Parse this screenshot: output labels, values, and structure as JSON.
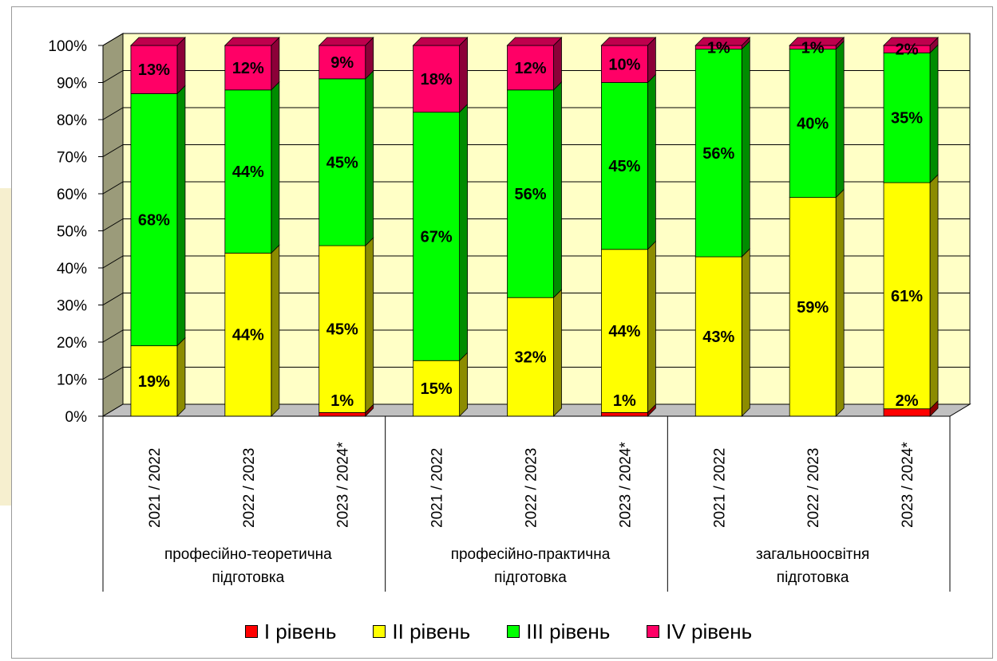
{
  "chart_data": {
    "type": "bar",
    "stacked": true,
    "percent_stacked": true,
    "three_d": true,
    "yticks": [
      "0%",
      "10%",
      "20%",
      "30%",
      "40%",
      "50%",
      "60%",
      "70%",
      "80%",
      "90%",
      "100%"
    ],
    "ylim": [
      0,
      100
    ],
    "categories": [
      "2021 / 2022",
      "2022 / 2023",
      "2023 / 2024*",
      "2021 / 2022",
      "2022 / 2023",
      "2023 / 2024*",
      "2021 / 2022",
      "2022 / 2023",
      "2023 / 2024*"
    ],
    "groups": [
      {
        "label_lines": [
          "професійно-теоретична",
          "підготовка"
        ],
        "span": 3
      },
      {
        "label_lines": [
          "професійно-практична",
          "підготовка"
        ],
        "span": 3
      },
      {
        "label_lines": [
          "загальноосвітня",
          "підготовка"
        ],
        "span": 3
      }
    ],
    "series": [
      {
        "name": "I рівень",
        "color": "#ff0000",
        "values": [
          0,
          0,
          1,
          0,
          0,
          1,
          0,
          0,
          2
        ],
        "labels": [
          "",
          "",
          "",
          "",
          "",
          "",
          "",
          "",
          ""
        ]
      },
      {
        "name": "II рівень",
        "color": "#ffff00",
        "values": [
          19,
          44,
          45,
          15,
          32,
          44,
          43,
          59,
          61
        ],
        "labels": [
          "19%",
          "44%",
          "45%",
          "15%",
          "32%",
          "44%",
          "43%",
          "59%",
          "61%"
        ]
      },
      {
        "name": "III рівень",
        "color": "#00ff00",
        "values": [
          68,
          44,
          45,
          67,
          56,
          45,
          56,
          40,
          35
        ],
        "labels": [
          "68%",
          "44%",
          "45%",
          "67%",
          "56%",
          "45%",
          "56%",
          "40%",
          "35%"
        ]
      },
      {
        "name": "IV рівень",
        "color": "#ff0066",
        "values": [
          13,
          12,
          9,
          18,
          12,
          10,
          1,
          1,
          2
        ],
        "labels": [
          "13%",
          "12%",
          "9%",
          "18%",
          "12%",
          "10%",
          "1%",
          "1%",
          "2%"
        ]
      }
    ],
    "extra_labels": [
      {
        "category_index": 2,
        "text": "1%"
      },
      {
        "category_index": 5,
        "text": "1%"
      },
      {
        "category_index": 8,
        "text": "2%"
      }
    ],
    "grid": true,
    "legend_position": "bottom"
  }
}
